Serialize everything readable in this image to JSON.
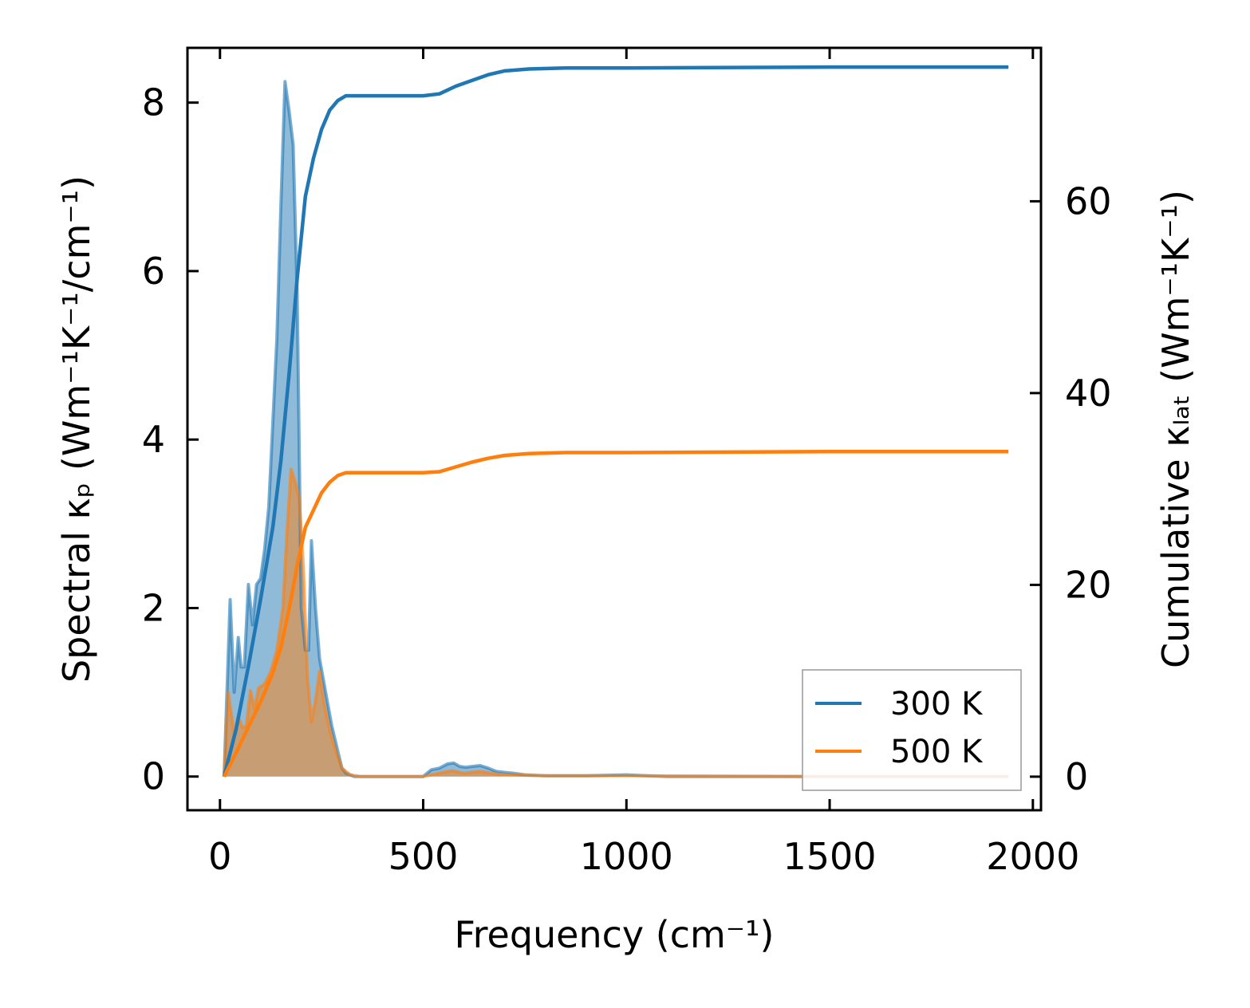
{
  "chart_data": {
    "type": "line",
    "xlabel": "Frequency (cm⁻¹)",
    "ylabel_left": "Spectral κₚ (Wm⁻¹K⁻¹/cm⁻¹)",
    "ylabel_right": "Cumulative κₗₐₜ (Wm⁻¹K⁻¹)",
    "xlim": [
      -80,
      2020
    ],
    "ylim_left": [
      -0.4,
      8.65
    ],
    "ylim_right": [
      -3.5,
      76
    ],
    "x_ticks": [
      0,
      500,
      1000,
      1500,
      2000
    ],
    "y_left_ticks": [
      0,
      2,
      4,
      6,
      8
    ],
    "y_right_ticks": [
      0,
      20,
      40,
      60
    ],
    "legend": {
      "position": "lower-right",
      "entries": [
        "300 K",
        "500 K"
      ]
    },
    "colors": {
      "300 K": "#1f77b4",
      "500 K": "#ff7f0e"
    },
    "series": [
      {
        "name": "300 K",
        "spectral": {
          "x": [
            10,
            25,
            35,
            45,
            52,
            60,
            70,
            80,
            90,
            100,
            110,
            120,
            130,
            140,
            150,
            160,
            170,
            180,
            190,
            200,
            210,
            218,
            225,
            235,
            245,
            260,
            275,
            290,
            300,
            310,
            320,
            330,
            345,
            360,
            400,
            500,
            520,
            540,
            560,
            575,
            590,
            605,
            620,
            640,
            660,
            680,
            700,
            720,
            750,
            800,
            900,
            1000,
            1050,
            1100,
            1500,
            1940
          ],
          "y": [
            0.0,
            2.1,
            1.0,
            1.65,
            1.3,
            1.3,
            2.28,
            1.8,
            2.28,
            2.35,
            2.7,
            3.2,
            4.2,
            5.2,
            6.8,
            8.25,
            7.9,
            7.5,
            5.7,
            2.0,
            1.5,
            1.5,
            2.8,
            2.0,
            1.4,
            1.0,
            0.6,
            0.3,
            0.1,
            0.04,
            0.02,
            0.0,
            0.0,
            0.0,
            0.0,
            0.0,
            0.08,
            0.1,
            0.15,
            0.16,
            0.12,
            0.11,
            0.12,
            0.13,
            0.1,
            0.06,
            0.05,
            0.04,
            0.02,
            0.01,
            0.01,
            0.02,
            0.01,
            0.0,
            0.0,
            0.0
          ]
        },
        "cumulative": {
          "x": [
            10,
            40,
            70,
            100,
            130,
            150,
            170,
            190,
            210,
            230,
            250,
            270,
            290,
            310,
            330,
            500,
            540,
            580,
            620,
            660,
            700,
            760,
            850,
            1000,
            1500,
            1940
          ],
          "y": [
            0.0,
            5.0,
            11.5,
            18.5,
            26.0,
            33.0,
            42.0,
            52.0,
            60.5,
            64.5,
            67.5,
            69.5,
            70.5,
            71.0,
            71.0,
            71.0,
            71.2,
            72.0,
            72.6,
            73.2,
            73.6,
            73.8,
            73.9,
            73.9,
            74.0,
            74.0
          ]
        }
      },
      {
        "name": "500 K",
        "spectral": {
          "x": [
            10,
            20,
            35,
            45,
            55,
            65,
            75,
            85,
            95,
            110,
            125,
            140,
            155,
            165,
            175,
            185,
            195,
            205,
            215,
            225,
            235,
            245,
            255,
            270,
            285,
            300,
            320,
            345,
            400,
            500,
            540,
            570,
            600,
            640,
            680,
            720,
            800,
            1000,
            1500,
            1940
          ],
          "y": [
            0.0,
            1.0,
            0.5,
            0.72,
            0.58,
            0.6,
            1.02,
            0.8,
            1.05,
            1.1,
            1.25,
            1.5,
            2.0,
            2.9,
            3.65,
            3.5,
            3.3,
            2.5,
            1.2,
            0.65,
            0.9,
            1.25,
            0.9,
            0.55,
            0.3,
            0.1,
            0.02,
            0.0,
            0.0,
            0.0,
            0.04,
            0.07,
            0.04,
            0.06,
            0.03,
            0.02,
            0.01,
            0.01,
            0.0,
            0.0
          ]
        },
        "cumulative": {
          "x": [
            10,
            40,
            70,
            100,
            130,
            150,
            170,
            190,
            210,
            230,
            250,
            270,
            290,
            310,
            330,
            500,
            540,
            580,
            620,
            660,
            700,
            760,
            850,
            1000,
            1500,
            1940
          ],
          "y": [
            0.0,
            2.5,
            5.2,
            7.8,
            10.8,
            13.5,
            17.5,
            22.0,
            26.0,
            27.8,
            29.6,
            30.7,
            31.4,
            31.7,
            31.7,
            31.7,
            31.8,
            32.3,
            32.8,
            33.2,
            33.5,
            33.7,
            33.8,
            33.8,
            33.9,
            33.9
          ]
        }
      }
    ]
  }
}
